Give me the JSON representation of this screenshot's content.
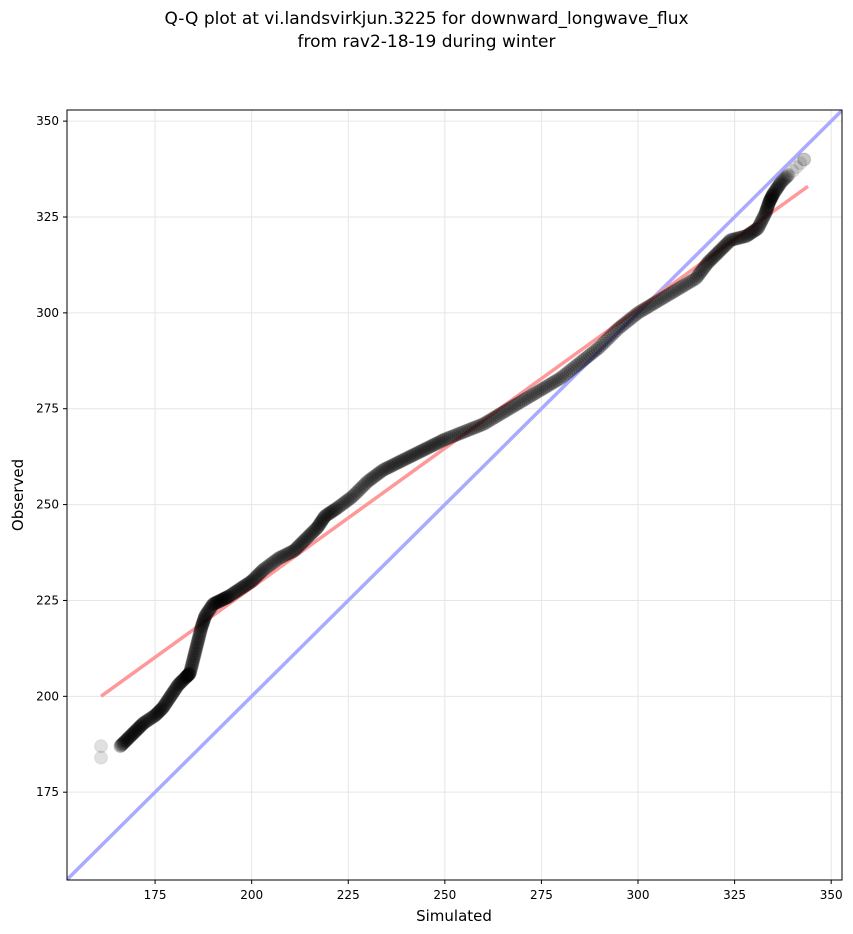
{
  "chart_data": {
    "type": "scatter",
    "title_line1": "Q-Q plot at vi.landsvirkjun.3225 for downward_longwave_flux",
    "title_line2": "from rav2-18-19 during winter",
    "xlabel": "Simulated",
    "ylabel": "Observed",
    "xlim": [
      152.2,
      352.8
    ],
    "ylim": [
      152.1,
      352.9
    ],
    "xticks": [
      175,
      200,
      225,
      250,
      275,
      300,
      325,
      350
    ],
    "yticks": [
      175,
      200,
      225,
      250,
      275,
      300,
      325,
      350
    ],
    "grid": true,
    "point_color": "#000000",
    "fit_line": {
      "color": "#ff9999",
      "x": [
        161,
        344
      ],
      "y": [
        200,
        333
      ]
    },
    "identity_line": {
      "color": "#aaaaff"
    },
    "quantiles": {
      "simulated": [
        161,
        161,
        166,
        168,
        170,
        172,
        175,
        177,
        179,
        181,
        183,
        184,
        185,
        186,
        187,
        188,
        190,
        192,
        194,
        197,
        200,
        203,
        207,
        211,
        214,
        217,
        219,
        222,
        226,
        230,
        234,
        238,
        242,
        246,
        250,
        255,
        260,
        265,
        270,
        275,
        280,
        285,
        290,
        295,
        300,
        305,
        310,
        315,
        318,
        321,
        324,
        328,
        331,
        333,
        334,
        335,
        337,
        339,
        341,
        343
      ],
      "observed": [
        184,
        187,
        187,
        189,
        191,
        193,
        195,
        197,
        200,
        203,
        205,
        206,
        210,
        214,
        218,
        221,
        224,
        225,
        226,
        228,
        230,
        233,
        236,
        238,
        241,
        244,
        247,
        249,
        252,
        256,
        259,
        261,
        263,
        265,
        267,
        269,
        271,
        274,
        277,
        280,
        283,
        287,
        291,
        296,
        300,
        303,
        306,
        309,
        313,
        316,
        319,
        320,
        322,
        326,
        329,
        331,
        334,
        336,
        338,
        340
      ]
    }
  }
}
